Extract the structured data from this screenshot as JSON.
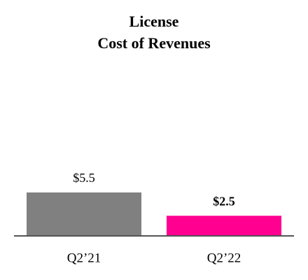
{
  "chart_data": {
    "type": "bar",
    "title": "License",
    "subtitle": "Cost of Revenues",
    "categories": [
      "Q2’21",
      "Q2’22"
    ],
    "values": [
      5.5,
      2.5
    ],
    "value_labels": [
      "$5.5",
      "$2.5"
    ],
    "colors": [
      "#808080",
      "#ff0090"
    ],
    "value_label_bold": [
      false,
      true
    ]
  }
}
